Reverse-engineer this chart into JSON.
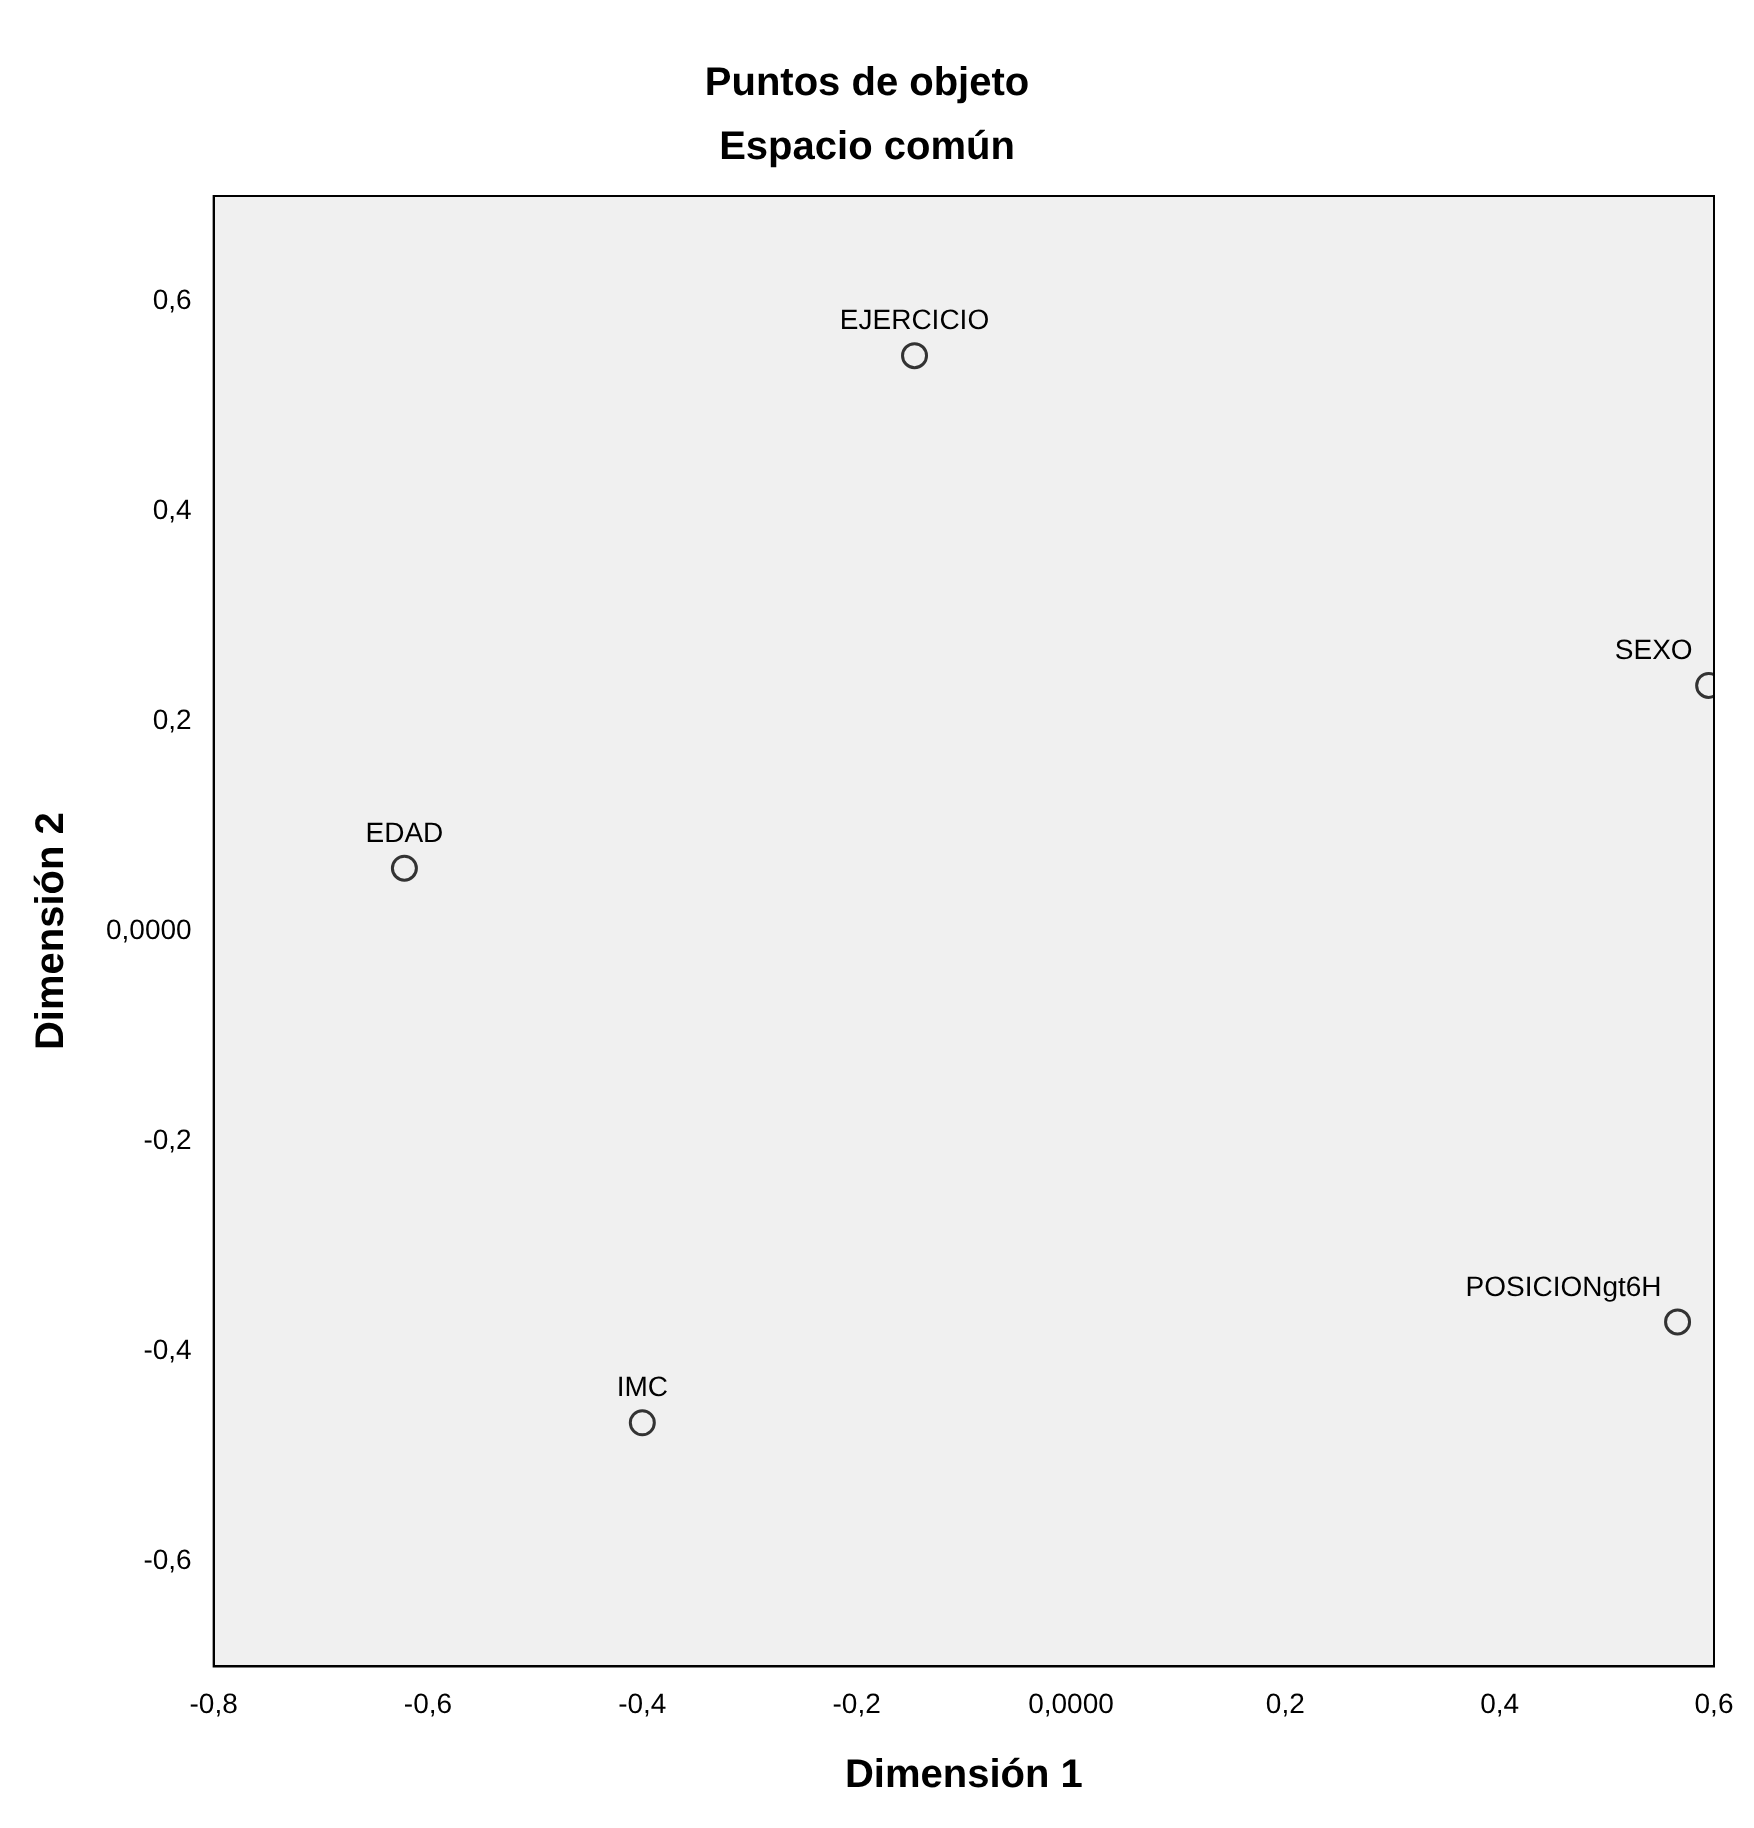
{
  "chart_data": {
    "type": "scatter",
    "title": "Puntos de objeto",
    "subtitle": "Espacio común",
    "xlabel": "Dimensión 1",
    "ylabel": "Dimensión 2",
    "x": [
      -0.146,
      0.595,
      -0.622,
      -0.4,
      0.566
    ],
    "values": [
      0.548,
      0.234,
      0.06,
      -0.468,
      -0.372
    ],
    "color": "#333333",
    "marker": "circle",
    "grid": false,
    "legend": false,
    "annotations": [
      {
        "text": "EJERCICIO",
        "x": -0.146,
        "y": 0.548
      },
      {
        "text": "SEXO",
        "x": 0.595,
        "y": 0.234
      },
      {
        "text": "EDAD",
        "x": -0.622,
        "y": 0.06
      },
      {
        "text": "IMC",
        "x": -0.4,
        "y": -0.468
      },
      {
        "text": "POSICIONgt6H",
        "x": 0.566,
        "y": -0.372
      }
    ],
    "xlim": [
      -0.8,
      0.6
    ],
    "xticks": [
      {
        "value": -0.8,
        "label": "-0,8"
      },
      {
        "value": -0.6,
        "label": "-0,6"
      },
      {
        "value": -0.4,
        "label": "-0,4"
      },
      {
        "value": -0.2,
        "label": "-0,2"
      },
      {
        "value": 0,
        "label": "0,0000"
      },
      {
        "value": 0.2,
        "label": "0,2"
      },
      {
        "value": 0.4,
        "label": "0,4"
      },
      {
        "value": 0.6,
        "label": "0,6"
      }
    ],
    "ylim": [
      -0.7,
      0.7
    ],
    "yticks": [
      {
        "value": -0.6,
        "label": "-0,6"
      },
      {
        "value": -0.4,
        "label": "-0,4"
      },
      {
        "value": -0.2,
        "label": "-0,2"
      },
      {
        "value": 0,
        "label": "0,0000"
      },
      {
        "value": 0.2,
        "label": "0,2"
      },
      {
        "value": 0.4,
        "label": "0,4"
      },
      {
        "value": 0.6,
        "label": "0,6"
      }
    ]
  }
}
